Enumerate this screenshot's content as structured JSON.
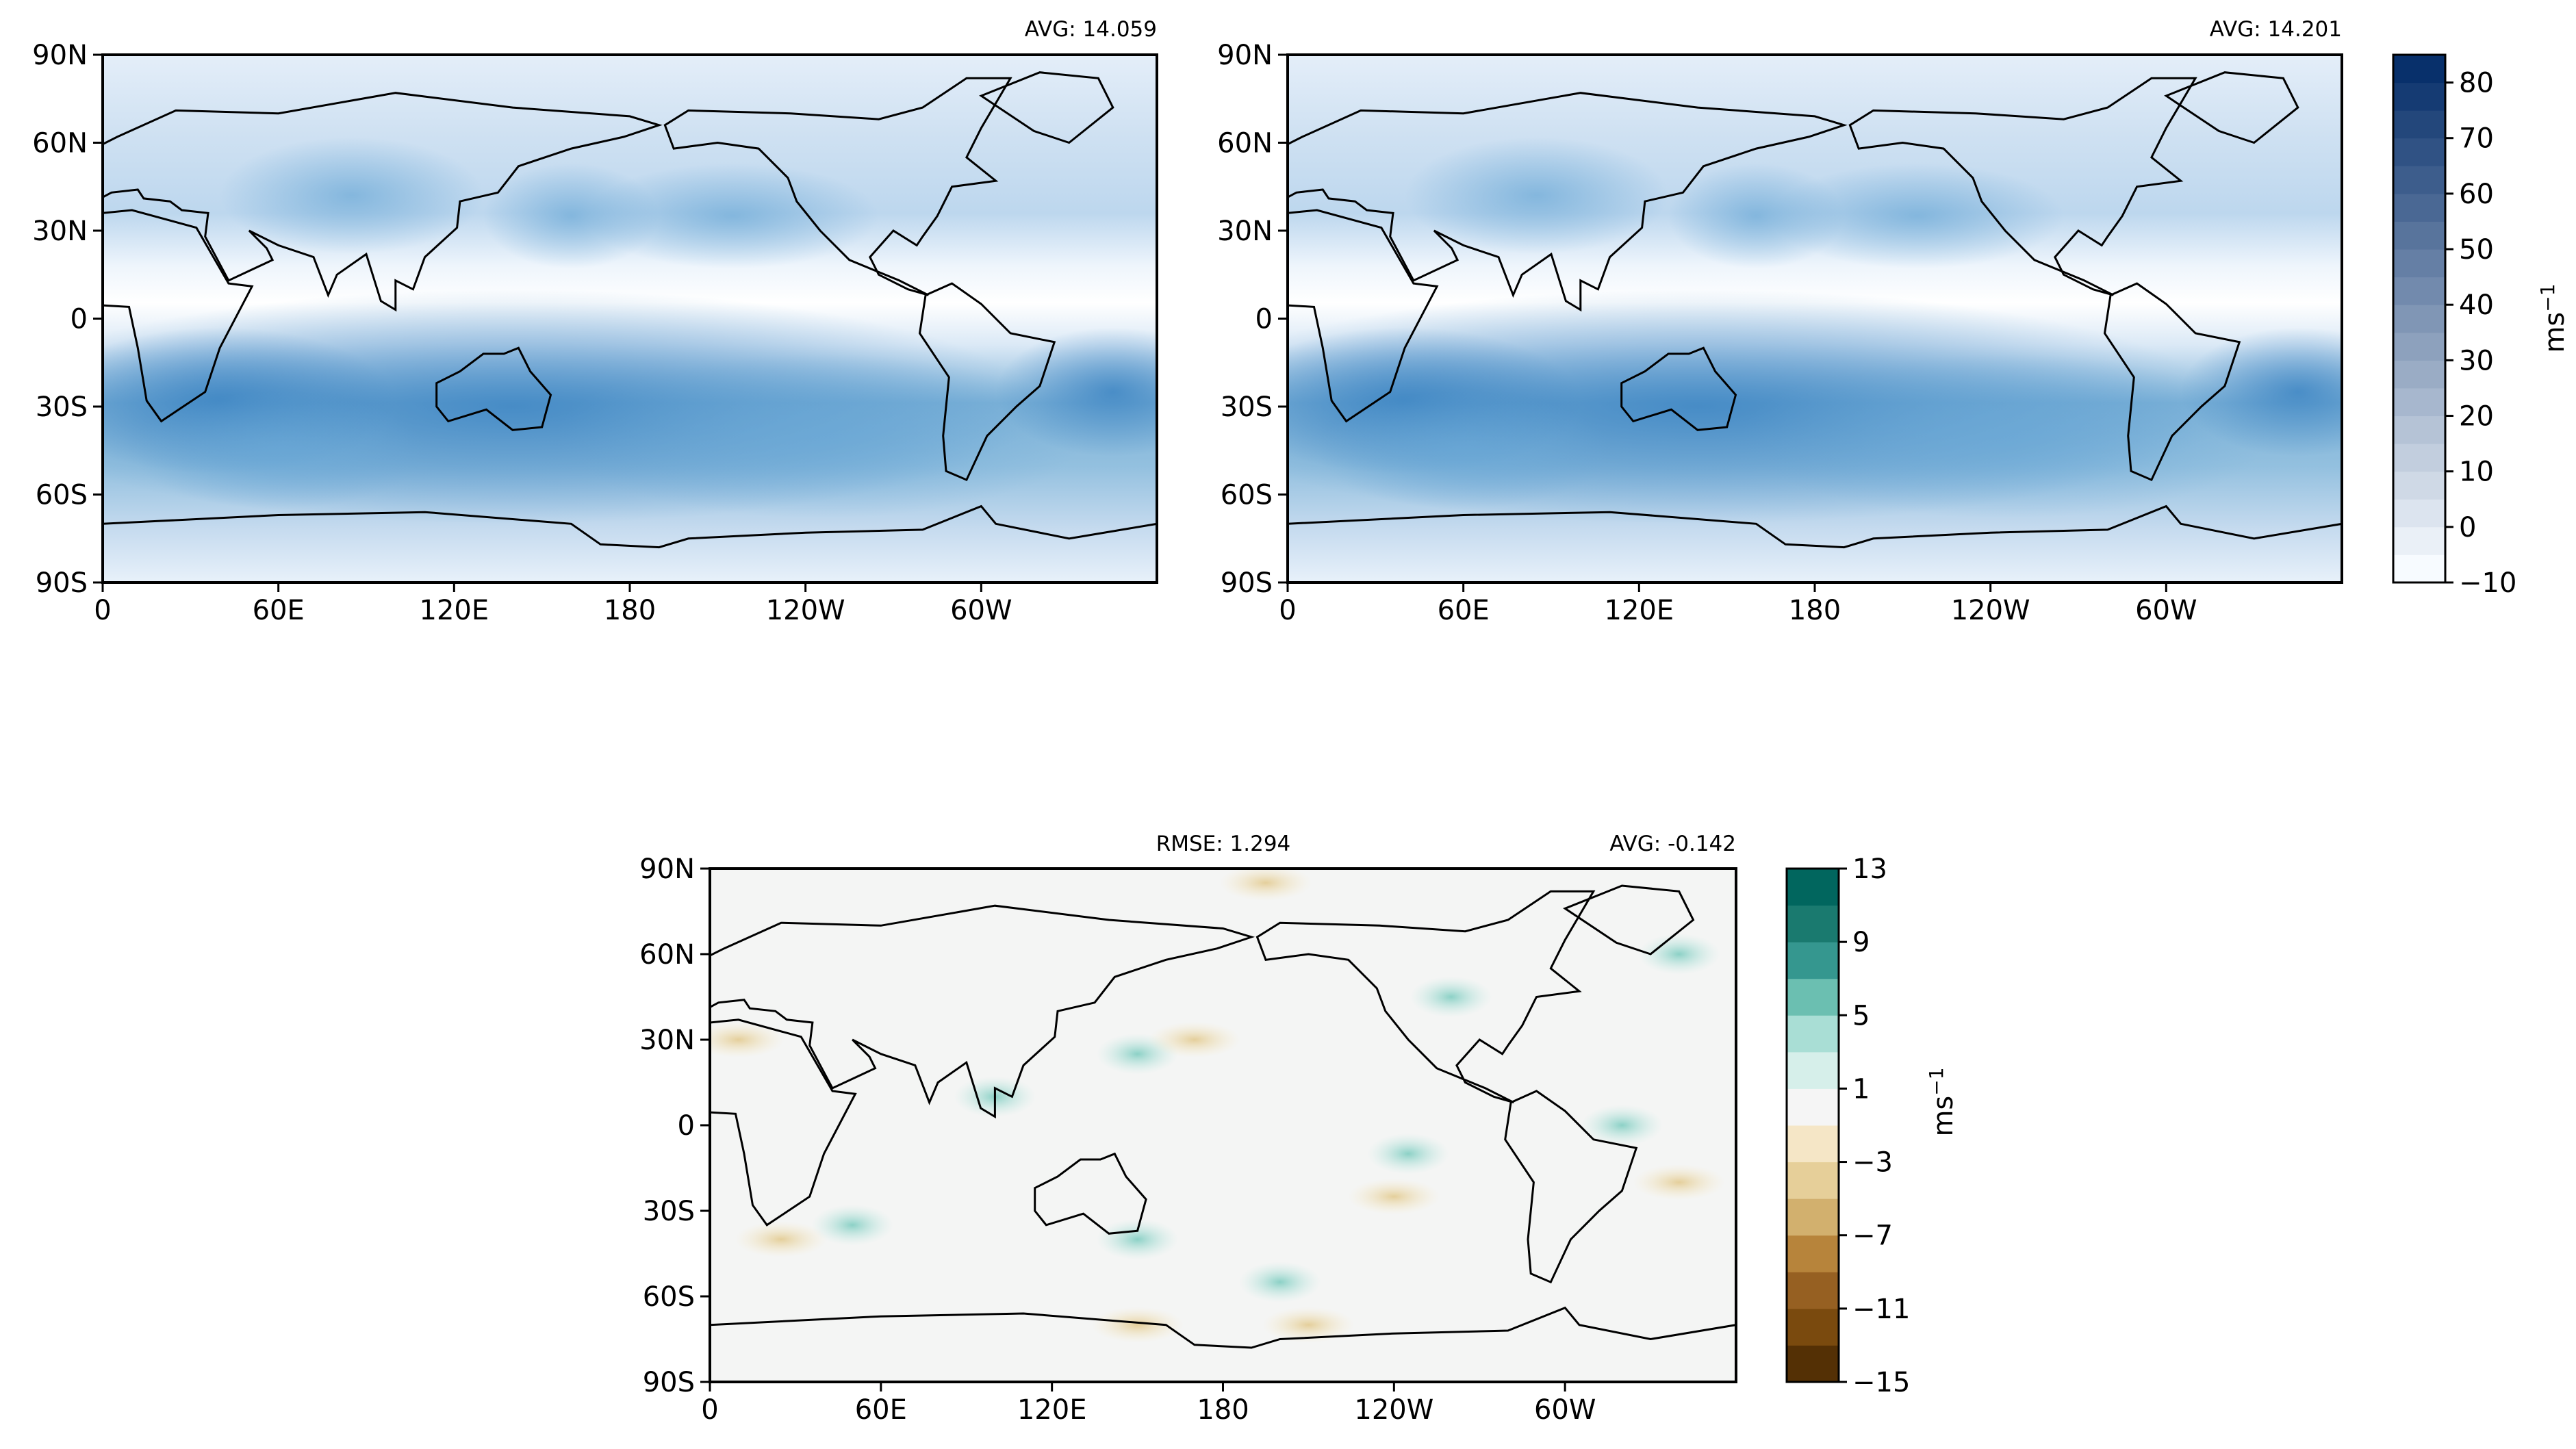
{
  "chart_data": [
    {
      "type": "heatmap",
      "panel": "top-left",
      "stats": {
        "avg": "AVG: 14.059"
      },
      "x_ticks": [
        "0",
        "60E",
        "120E",
        "180",
        "120W",
        "60W"
      ],
      "y_ticks": [
        "90N",
        "60N",
        "30N",
        "0",
        "30S",
        "60S",
        "90S"
      ],
      "xlim": [
        0,
        360
      ],
      "ylim": [
        -90,
        90
      ],
      "colormap": "Blues",
      "colorbar": "shared-right",
      "features": [
        {
          "lat": 30,
          "lon": 150,
          "value": 40
        },
        {
          "lat": 45,
          "lon": 85,
          "value": 32
        },
        {
          "lat": -30,
          "lon": 130,
          "value": 40
        },
        {
          "lat": -30,
          "lon": 40,
          "value": 33
        }
      ]
    },
    {
      "type": "heatmap",
      "panel": "top-right",
      "stats": {
        "avg": "AVG: 14.201"
      },
      "x_ticks": [
        "0",
        "60E",
        "120E",
        "180",
        "120W",
        "60W"
      ],
      "y_ticks": [
        "90N",
        "60N",
        "30N",
        "0",
        "30S",
        "60S",
        "90S"
      ],
      "xlim": [
        0,
        360
      ],
      "ylim": [
        -90,
        90
      ],
      "colormap": "Blues",
      "colorbar": {
        "ticks": [
          "80",
          "70",
          "60",
          "50",
          "40",
          "30",
          "20",
          "10",
          "0",
          "−10"
        ],
        "range": [
          -10,
          85
        ],
        "levels": [
          -10,
          -5,
          0,
          5,
          10,
          15,
          20,
          25,
          30,
          35,
          40,
          45,
          50,
          55,
          60,
          65,
          70,
          75,
          80,
          85
        ],
        "unit_base": "ms",
        "unit_exp": "−1"
      }
    },
    {
      "type": "heatmap",
      "panel": "bottom-difference",
      "stats": {
        "rmse": "RMSE: 1.294",
        "avg": "AVG: -0.142"
      },
      "x_ticks": [
        "0",
        "60E",
        "120E",
        "180",
        "120W",
        "60W"
      ],
      "y_ticks": [
        "90N",
        "60N",
        "30N",
        "0",
        "30S",
        "60S",
        "90S"
      ],
      "xlim": [
        0,
        360
      ],
      "ylim": [
        -90,
        90
      ],
      "colormap": "BrBG",
      "colorbar": {
        "ticks": [
          "13",
          "9",
          "5",
          "1",
          "−3",
          "−7",
          "−11",
          "−15"
        ],
        "range": [
          -15,
          13
        ],
        "levels": [
          -15,
          -13,
          -11,
          -9,
          -7,
          -5,
          -3,
          -1,
          1,
          3,
          5,
          7,
          9,
          11,
          13
        ],
        "unit_base": "ms",
        "unit_exp": "−1"
      }
    }
  ],
  "colors": {
    "blues_low": "#f7fbff",
    "blues_high": "#08306b",
    "diff_neutral": "#f4f5f4",
    "diff_positive": "#01665e",
    "diff_negative": "#8c510a",
    "coastline": "#000000"
  }
}
